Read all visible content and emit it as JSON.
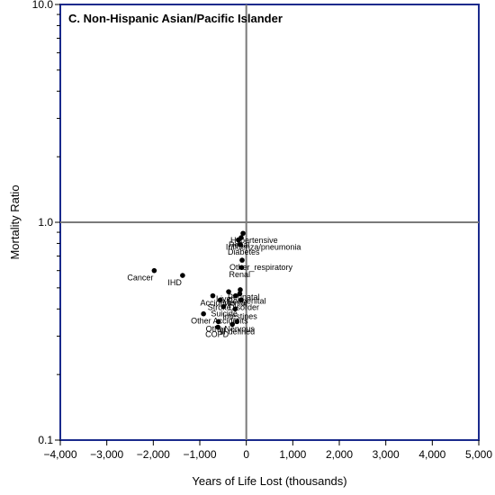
{
  "chart_data": {
    "type": "scatter",
    "title": "C. Non-Hispanic Asian/Pacific Islander",
    "xlabel": "Years of Life Lost (thousands)",
    "ylabel": "Mortality Ratio",
    "xlim": [
      -4000,
      5000
    ],
    "ylim": [
      0.1,
      10.0
    ],
    "yscale": "log",
    "xticks": [
      -4000,
      -3000,
      -2000,
      -1000,
      0,
      1000,
      2000,
      3000,
      4000,
      5000
    ],
    "xtick_labels": [
      "−4,000",
      "−3,000",
      "−2,000",
      "−1,000",
      "0",
      "1,000",
      "2,000",
      "3,000",
      "4,000",
      "5,000"
    ],
    "yticks_major": [
      0.1,
      1.0,
      10.0
    ],
    "ytick_labels": [
      "0.1",
      "1.0",
      "10.0"
    ],
    "reference_lines": {
      "x": 0,
      "y": 1.0
    },
    "grid": false,
    "colors": {
      "frame": "#1a2a8c",
      "points": "#000000",
      "reference": "#7a7a7a"
    },
    "points": [
      {
        "label": "Cancer",
        "x": -1980,
        "y": 0.6
      },
      {
        "label": "IHD",
        "x": -1370,
        "y": 0.57
      },
      {
        "label": "Hypertensive",
        "x": -70,
        "y": 0.89
      },
      {
        "label": "Renal",
        "x": -110,
        "y": 0.85
      },
      {
        "label": "Influenza/pneumonia",
        "x": -170,
        "y": 0.83
      },
      {
        "label": "Diabetes",
        "x": -130,
        "y": 0.79
      },
      {
        "label": "Other_respiratory",
        "x": -90,
        "y": 0.67
      },
      {
        "label": "Renal",
        "x": -100,
        "y": 0.62
      },
      {
        "label": "Perinatal",
        "x": -130,
        "y": 0.49
      },
      {
        "label": "Liver",
        "x": -380,
        "y": 0.48
      },
      {
        "label": "Congenital",
        "x": -140,
        "y": 0.47
      },
      {
        "label": "Mental",
        "x": -230,
        "y": 0.46
      },
      {
        "label": "Accidents",
        "x": -720,
        "y": 0.46
      },
      {
        "label": "Stroke",
        "x": -560,
        "y": 0.44
      },
      {
        "label": "Disorder",
        "x": -110,
        "y": 0.44
      },
      {
        "label": "Suicide",
        "x": -490,
        "y": 0.41
      },
      {
        "label": "Intestines",
        "x": -240,
        "y": 0.4
      },
      {
        "label": "Other Accidents",
        "x": -920,
        "y": 0.38
      },
      {
        "label": "Nervous",
        "x": -200,
        "y": 0.35
      },
      {
        "label": "Other",
        "x": -600,
        "y": 0.35
      },
      {
        "label": "Ill-defined",
        "x": -300,
        "y": 0.34
      },
      {
        "label": "COPD",
        "x": -610,
        "y": 0.33
      }
    ]
  }
}
